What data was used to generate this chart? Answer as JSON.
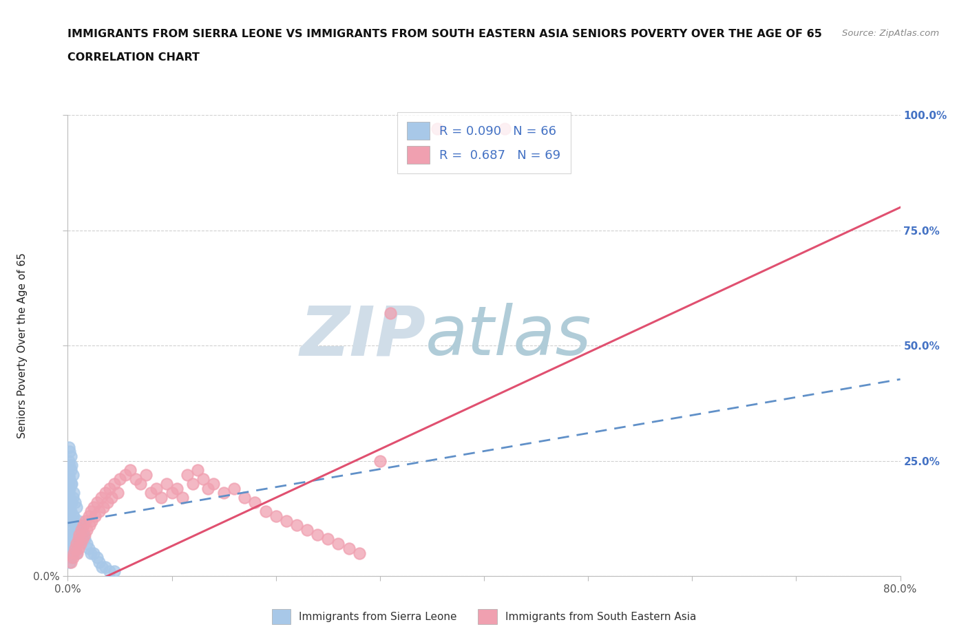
{
  "title_line1": "IMMIGRANTS FROM SIERRA LEONE VS IMMIGRANTS FROM SOUTH EASTERN ASIA SENIORS POVERTY OVER THE AGE OF 65",
  "title_line2": "CORRELATION CHART",
  "source": "Source: ZipAtlas.com",
  "ylabel": "Seniors Poverty Over the Age of 65",
  "xlim": [
    0,
    0.8
  ],
  "ylim": [
    0,
    1.0
  ],
  "legend_R1": "R = 0.090",
  "legend_N1": "N = 66",
  "legend_R2": "R = 0.687",
  "legend_N2": "N = 69",
  "series1_color": "#a8c8e8",
  "series2_color": "#f0a0b0",
  "trend1_color": "#6090c8",
  "trend2_color": "#e05070",
  "watermark_zip_color": "#d0dde8",
  "watermark_atlas_color": "#b0ccd8",
  "background_color": "#ffffff",
  "grid_color": "#d0d0d0",
  "title_color": "#111111",
  "right_tick_color": "#4472c4",
  "trend1_intercept": 0.115,
  "trend1_slope": 0.39,
  "trend2_intercept": -0.04,
  "trend2_slope": 1.05,
  "sl_x": [
    0.001,
    0.001,
    0.001,
    0.001,
    0.001,
    0.001,
    0.001,
    0.001,
    0.001,
    0.001,
    0.002,
    0.002,
    0.002,
    0.002,
    0.002,
    0.002,
    0.002,
    0.002,
    0.002,
    0.002,
    0.003,
    0.003,
    0.003,
    0.003,
    0.003,
    0.003,
    0.003,
    0.003,
    0.004,
    0.004,
    0.004,
    0.004,
    0.004,
    0.004,
    0.005,
    0.005,
    0.005,
    0.005,
    0.005,
    0.006,
    0.006,
    0.006,
    0.006,
    0.007,
    0.007,
    0.007,
    0.008,
    0.008,
    0.008,
    0.01,
    0.01,
    0.011,
    0.012,
    0.013,
    0.015,
    0.016,
    0.018,
    0.02,
    0.022,
    0.025,
    0.028,
    0.03,
    0.033,
    0.036,
    0.04,
    0.045
  ],
  "sl_y": [
    0.05,
    0.08,
    0.1,
    0.13,
    0.15,
    0.18,
    0.2,
    0.22,
    0.25,
    0.28,
    0.03,
    0.06,
    0.09,
    0.12,
    0.14,
    0.17,
    0.19,
    0.21,
    0.24,
    0.27,
    0.04,
    0.07,
    0.11,
    0.14,
    0.16,
    0.2,
    0.23,
    0.26,
    0.05,
    0.08,
    0.12,
    0.16,
    0.2,
    0.24,
    0.06,
    0.09,
    0.13,
    0.17,
    0.22,
    0.05,
    0.08,
    0.13,
    0.18,
    0.06,
    0.1,
    0.16,
    0.05,
    0.1,
    0.15,
    0.08,
    0.12,
    0.09,
    0.11,
    0.1,
    0.09,
    0.08,
    0.07,
    0.06,
    0.05,
    0.05,
    0.04,
    0.03,
    0.02,
    0.02,
    0.01,
    0.01
  ],
  "sea_x": [
    0.003,
    0.005,
    0.006,
    0.007,
    0.008,
    0.009,
    0.01,
    0.01,
    0.011,
    0.012,
    0.013,
    0.014,
    0.015,
    0.016,
    0.017,
    0.018,
    0.02,
    0.021,
    0.022,
    0.023,
    0.025,
    0.026,
    0.028,
    0.03,
    0.032,
    0.034,
    0.036,
    0.038,
    0.04,
    0.042,
    0.045,
    0.048,
    0.05,
    0.055,
    0.06,
    0.065,
    0.07,
    0.075,
    0.08,
    0.085,
    0.09,
    0.095,
    0.1,
    0.105,
    0.11,
    0.115,
    0.12,
    0.125,
    0.13,
    0.135,
    0.14,
    0.15,
    0.16,
    0.17,
    0.18,
    0.19,
    0.2,
    0.21,
    0.22,
    0.23,
    0.24,
    0.25,
    0.26,
    0.27,
    0.28,
    0.3,
    0.31,
    0.355,
    0.42
  ],
  "sea_y": [
    0.03,
    0.04,
    0.05,
    0.06,
    0.07,
    0.05,
    0.08,
    0.06,
    0.09,
    0.07,
    0.1,
    0.08,
    0.11,
    0.09,
    0.12,
    0.1,
    0.13,
    0.11,
    0.14,
    0.12,
    0.15,
    0.13,
    0.16,
    0.14,
    0.17,
    0.15,
    0.18,
    0.16,
    0.19,
    0.17,
    0.2,
    0.18,
    0.21,
    0.22,
    0.23,
    0.21,
    0.2,
    0.22,
    0.18,
    0.19,
    0.17,
    0.2,
    0.18,
    0.19,
    0.17,
    0.22,
    0.2,
    0.23,
    0.21,
    0.19,
    0.2,
    0.18,
    0.19,
    0.17,
    0.16,
    0.14,
    0.13,
    0.12,
    0.11,
    0.1,
    0.09,
    0.08,
    0.07,
    0.06,
    0.05,
    0.25,
    0.57,
    0.97,
    0.97
  ]
}
